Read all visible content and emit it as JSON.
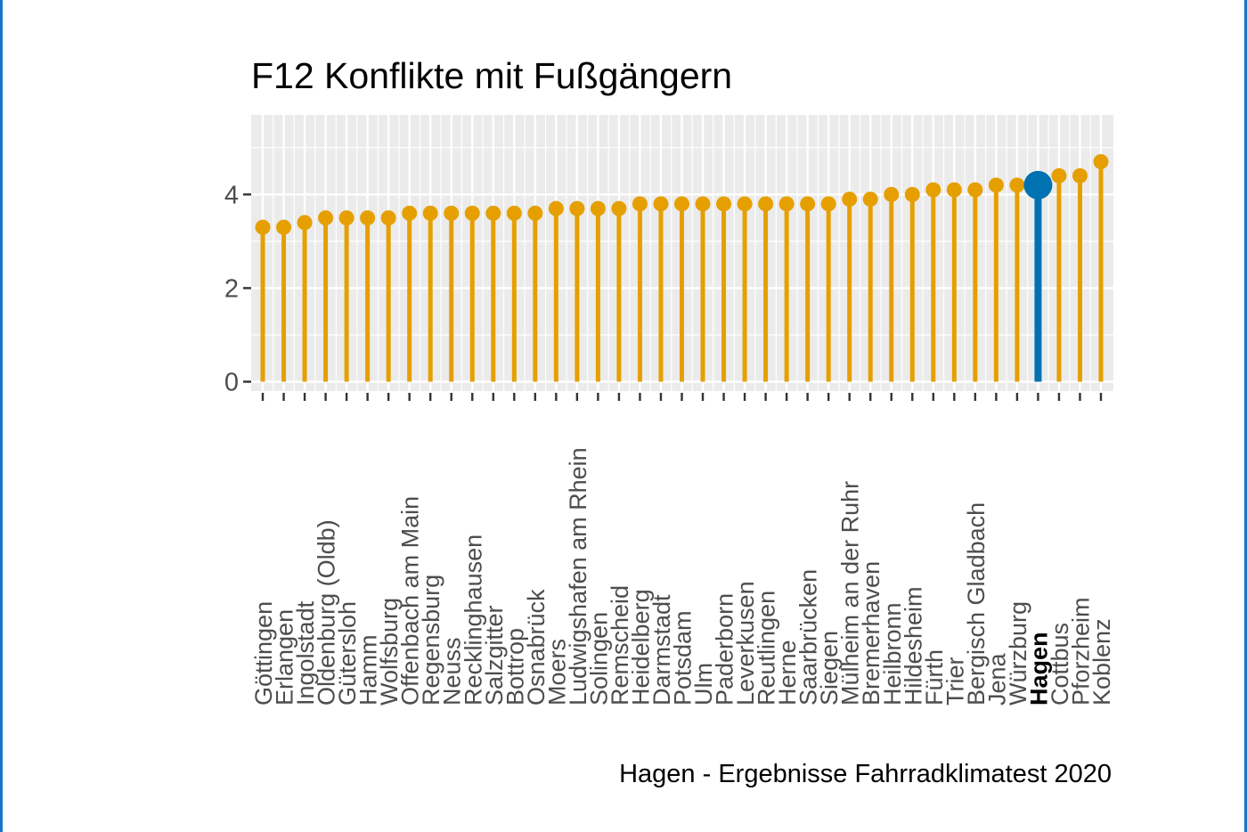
{
  "chart_data": {
    "type": "lollipop",
    "title": "F12 Konflikte mit Fußgängern",
    "caption": "Hagen - Ergebnisse Fahrradklimatest 2020",
    "xlabel": "",
    "ylabel": "",
    "ylim": [
      -0.2,
      5.7
    ],
    "yticks": [
      0,
      2,
      4
    ],
    "grid": true,
    "legend": "none",
    "highlight": "Hagen",
    "colors": {
      "default": "#E69F00",
      "highlight": "#0072B2",
      "panel": "#EBEBEB"
    },
    "categories": [
      "Göttingen",
      "Erlangen",
      "Ingolstadt",
      "Oldenburg (Oldb)",
      "Gütersloh",
      "Hamm",
      "Wolfsburg",
      "Offenbach am Main",
      "Regensburg",
      "Neuss",
      "Recklinghausen",
      "Salzgitter",
      "Bottrop",
      "Osnabrück",
      "Moers",
      "Ludwigshafen am Rhein",
      "Solingen",
      "Remscheid",
      "Heidelberg",
      "Darmstadt",
      "Potsdam",
      "Ulm",
      "Paderborn",
      "Leverkusen",
      "Reutlingen",
      "Herne",
      "Saarbrücken",
      "Siegen",
      "Mülheim an der Ruhr",
      "Bremerhaven",
      "Heilbronn",
      "Hildesheim",
      "Fürth",
      "Trier",
      "Bergisch Gladbach",
      "Jena",
      "Würzburg",
      "Hagen",
      "Cottbus",
      "Pforzheim",
      "Koblenz"
    ],
    "values": [
      3.3,
      3.3,
      3.4,
      3.5,
      3.5,
      3.5,
      3.5,
      3.6,
      3.6,
      3.6,
      3.6,
      3.6,
      3.6,
      3.6,
      3.7,
      3.7,
      3.7,
      3.7,
      3.8,
      3.8,
      3.8,
      3.8,
      3.8,
      3.8,
      3.8,
      3.8,
      3.8,
      3.8,
      3.9,
      3.9,
      4.0,
      4.0,
      4.1,
      4.1,
      4.1,
      4.2,
      4.2,
      4.2,
      4.4,
      4.4,
      4.7
    ]
  }
}
